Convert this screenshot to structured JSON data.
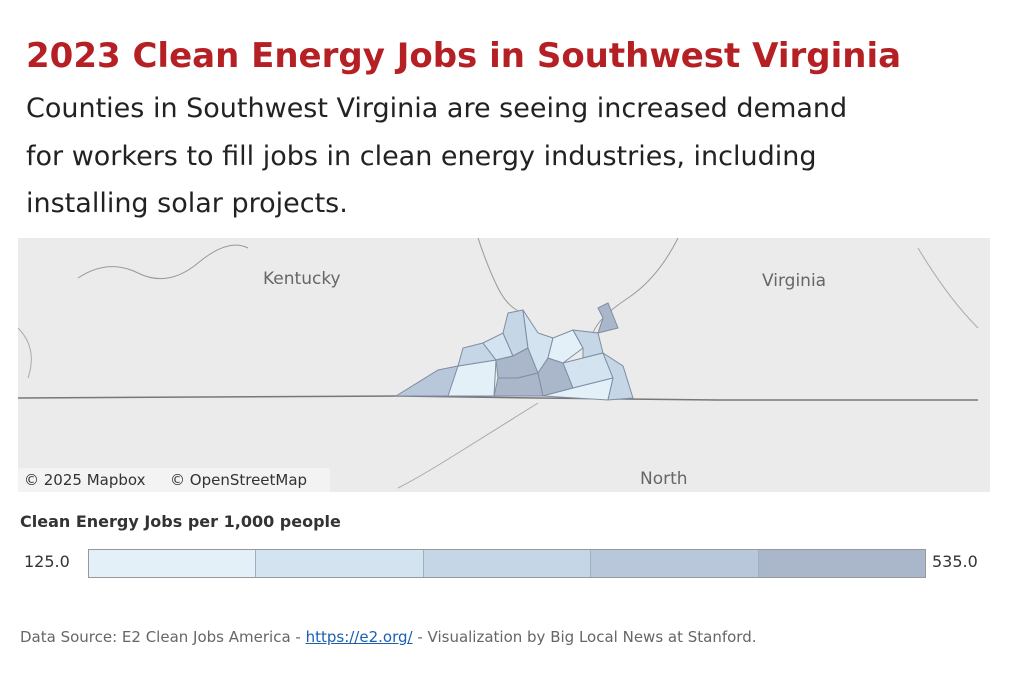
{
  "header": {
    "title": "2023 Clean Energy Jobs in Southwest Virginia",
    "subtitle_lines": [
      "Counties in Southwest Virginia are seeing increased demand",
      "for workers to fill jobs in clean energy industries, including",
      "installing solar projects."
    ]
  },
  "map": {
    "labels": [
      "Kentucky",
      "Virginia",
      "North"
    ],
    "attribution": [
      "© 2025 Mapbox",
      "© OpenStreetMap"
    ]
  },
  "legend": {
    "title": "Clean Energy Jobs per 1,000 people",
    "min": "125.0",
    "max": "535.0",
    "colors": [
      "#e3f0f8",
      "#d3e3ef",
      "#c5d6e6",
      "#b8c7da",
      "#aab7ca"
    ]
  },
  "footer": {
    "source_prefix": "Data Source: E2 Clean Jobs America -",
    "link": "https://e2.org/",
    "source_suffix": "- Visualization by Big Local News at Stanford."
  }
}
